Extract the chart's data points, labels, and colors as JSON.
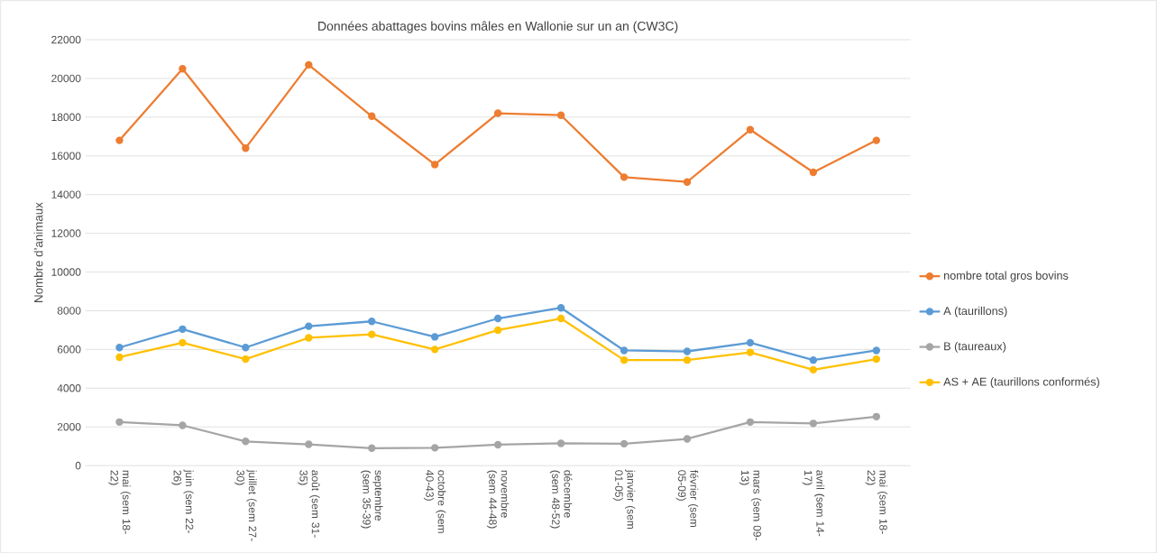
{
  "chart_data": {
    "type": "line",
    "title": "Données abattages bovins mâles en Wallonie sur un an (CW3C)",
    "ylabel": "Nombre d’animaux",
    "categories": [
      "mai (sem 18-22)",
      "juin (sem 22-26)",
      "juillet (sem 27-30)",
      "août (sem 31-35)",
      "septembre (sem 35-39)",
      "octobre (sem 40-43)",
      "novembre (sem 44-48)",
      "décembre (sem 48-52)",
      "janvier (sem 01-05)",
      "février (sem 05-09)",
      "mars (sem 09-13)",
      "avril (sem 14-17)",
      "mai (sem 18-22)"
    ],
    "series": [
      {
        "name": "nombre total gros bovins",
        "color": "#ed7d31",
        "values": [
          16800,
          20500,
          16400,
          20700,
          18050,
          15550,
          18200,
          18100,
          14900,
          14650,
          17350,
          15150,
          16800
        ]
      },
      {
        "name": "A (taurillons)",
        "color": "#5b9bd5",
        "values": [
          6100,
          7050,
          6100,
          7200,
          7450,
          6650,
          7600,
          8150,
          5950,
          5900,
          6350,
          5450,
          5950
        ]
      },
      {
        "name": "B (taureaux)",
        "color": "#a5a5a5",
        "values": [
          2250,
          2080,
          1250,
          1100,
          900,
          920,
          1080,
          1150,
          1130,
          1380,
          2250,
          2180,
          2530
        ]
      },
      {
        "name": "AS + AE (taurillons conformés)",
        "color": "#ffc000",
        "values": [
          5600,
          6350,
          5500,
          6600,
          6780,
          6000,
          7000,
          7600,
          5450,
          5450,
          5850,
          4950,
          5500
        ]
      }
    ],
    "ylim": [
      0,
      22000
    ],
    "yticks": [
      0,
      2000,
      4000,
      6000,
      8000,
      10000,
      12000,
      14000,
      16000,
      18000,
      20000,
      22000
    ],
    "grid": "y",
    "legend": "right",
    "marker": "circle",
    "line_style": "solid"
  }
}
